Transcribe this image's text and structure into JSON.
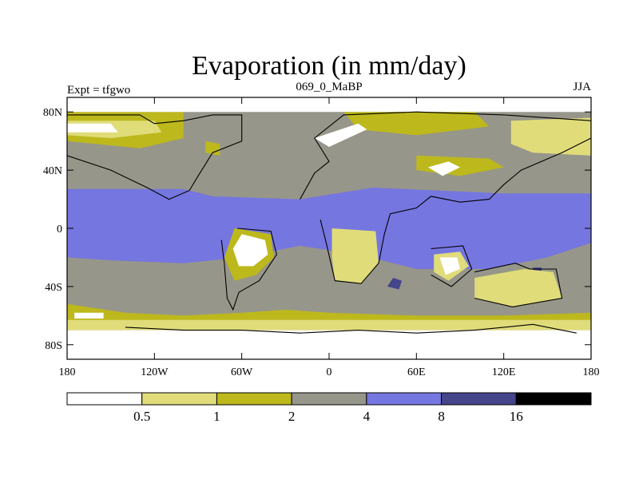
{
  "chart_data": {
    "type": "heatmap",
    "title": "Evaporation (in mm/day)",
    "left_label": "Expt = tfgwo",
    "center_label": "069_0_MaBP",
    "right_label": "JJA",
    "x_range": [
      -180,
      180
    ],
    "y_range": [
      -90,
      90
    ],
    "x_ticks": [
      {
        "value": -180,
        "label": "180"
      },
      {
        "value": -120,
        "label": "120W"
      },
      {
        "value": -60,
        "label": "60W"
      },
      {
        "value": 0,
        "label": "0"
      },
      {
        "value": 60,
        "label": "60E"
      },
      {
        "value": 120,
        "label": "120E"
      },
      {
        "value": 180,
        "label": "180"
      }
    ],
    "y_ticks": [
      {
        "value": 80,
        "label": "80N"
      },
      {
        "value": 40,
        "label": "40N"
      },
      {
        "value": 0,
        "label": "0"
      },
      {
        "value": -40,
        "label": "40S"
      },
      {
        "value": -80,
        "label": "80S"
      }
    ],
    "colorbar": {
      "levels": [
        "0.5",
        "1",
        "2",
        "4",
        "8",
        "16"
      ],
      "colors": [
        "#ffffff",
        "#e0dc7a",
        "#bdb81c",
        "#97968a",
        "#7676e0",
        "#45458c",
        "#000000"
      ]
    },
    "regions": [
      {
        "name": "ocean-southern-band",
        "level": 3,
        "points": [
          [
            -180,
            -28
          ],
          [
            180,
            -28
          ],
          [
            180,
            -62
          ],
          [
            -180,
            -62
          ]
        ]
      },
      {
        "name": "ocean-tropical-band",
        "level": 4,
        "points": [
          [
            -180,
            27
          ],
          [
            -100,
            27
          ],
          [
            -80,
            22
          ],
          [
            -20,
            20
          ],
          [
            30,
            28
          ],
          [
            120,
            24
          ],
          [
            180,
            24
          ],
          [
            180,
            -10
          ],
          [
            150,
            -20
          ],
          [
            110,
            -28
          ],
          [
            60,
            -28
          ],
          [
            20,
            -18
          ],
          [
            -20,
            -12
          ],
          [
            -60,
            -20
          ],
          [
            -100,
            -24
          ],
          [
            -150,
            -22
          ],
          [
            -180,
            -20
          ]
        ]
      },
      {
        "name": "ocean-south-dark-patch",
        "level": 5,
        "points": [
          [
            44,
            -34
          ],
          [
            50,
            -36
          ],
          [
            48,
            -42
          ],
          [
            40,
            -40
          ]
        ]
      },
      {
        "name": "ocean-east-dark-patch",
        "level": 5,
        "points": [
          [
            140,
            -27
          ],
          [
            146,
            -27
          ],
          [
            146,
            -33
          ],
          [
            140,
            -33
          ]
        ]
      },
      {
        "name": "south-ocean-yellow",
        "level": 2,
        "points": [
          [
            -180,
            -52
          ],
          [
            -140,
            -58
          ],
          [
            -100,
            -60
          ],
          [
            -60,
            -58
          ],
          [
            -30,
            -56
          ],
          [
            0,
            -58
          ],
          [
            60,
            -60
          ],
          [
            120,
            -60
          ],
          [
            180,
            -58
          ],
          [
            180,
            -68
          ],
          [
            -180,
            -68
          ]
        ]
      },
      {
        "name": "southern-pale-band",
        "level": 1,
        "points": [
          [
            -180,
            -63
          ],
          [
            180,
            -63
          ],
          [
            180,
            -70
          ],
          [
            -180,
            -70
          ]
        ]
      },
      {
        "name": "antarctica",
        "level": 0,
        "points": [
          [
            -180,
            -70
          ],
          [
            180,
            -70
          ],
          [
            180,
            -90
          ],
          [
            -180,
            -90
          ]
        ]
      },
      {
        "name": "antarctic-ice-white-left",
        "level": 0,
        "points": [
          [
            -175,
            -58
          ],
          [
            -155,
            -58
          ],
          [
            -155,
            -62
          ],
          [
            -175,
            -62
          ]
        ]
      },
      {
        "name": "north-pacific-yellow",
        "level": 2,
        "points": [
          [
            -180,
            80
          ],
          [
            -100,
            80
          ],
          [
            -100,
            62
          ],
          [
            -130,
            55
          ],
          [
            -180,
            60
          ]
        ]
      },
      {
        "name": "north-pacific-pale",
        "level": 1,
        "points": [
          [
            -180,
            74
          ],
          [
            -120,
            74
          ],
          [
            -115,
            66
          ],
          [
            -150,
            62
          ],
          [
            -180,
            64
          ]
        ]
      },
      {
        "name": "north-pacific-white",
        "level": 0,
        "points": [
          [
            -180,
            72
          ],
          [
            -150,
            72
          ],
          [
            -145,
            66
          ],
          [
            -180,
            66
          ]
        ]
      },
      {
        "name": "arctic-white-strip",
        "level": 0,
        "points": [
          [
            -180,
            90
          ],
          [
            180,
            90
          ],
          [
            180,
            80
          ],
          [
            -180,
            80
          ]
        ]
      },
      {
        "name": "north-america-yellow-patch",
        "level": 2,
        "points": [
          [
            -85,
            60
          ],
          [
            -75,
            58
          ],
          [
            -75,
            50
          ],
          [
            -85,
            52
          ]
        ]
      },
      {
        "name": "eurasia-yellow",
        "level": 2,
        "points": [
          [
            10,
            80
          ],
          [
            100,
            80
          ],
          [
            110,
            70
          ],
          [
            60,
            64
          ],
          [
            20,
            68
          ]
        ]
      },
      {
        "name": "northeast-asia-white",
        "level": 0,
        "points": [
          [
            130,
            70
          ],
          [
            170,
            72
          ],
          [
            180,
            70
          ],
          [
            180,
            54
          ],
          [
            150,
            56
          ],
          [
            130,
            60
          ]
        ]
      },
      {
        "name": "northeast-asia-pale",
        "level": 1,
        "points": [
          [
            125,
            74
          ],
          [
            180,
            76
          ],
          [
            180,
            50
          ],
          [
            140,
            52
          ],
          [
            125,
            58
          ]
        ]
      },
      {
        "name": "europe-white-streak",
        "level": 0,
        "points": [
          [
            -10,
            62
          ],
          [
            20,
            72
          ],
          [
            26,
            68
          ],
          [
            0,
            56
          ]
        ]
      },
      {
        "name": "east-asia-yellow",
        "level": 2,
        "points": [
          [
            60,
            50
          ],
          [
            110,
            48
          ],
          [
            120,
            42
          ],
          [
            90,
            36
          ],
          [
            60,
            40
          ]
        ]
      },
      {
        "name": "central-asia-white",
        "level": 0,
        "points": [
          [
            68,
            42
          ],
          [
            82,
            46
          ],
          [
            90,
            42
          ],
          [
            78,
            36
          ]
        ]
      },
      {
        "name": "south-america-yellow",
        "level": 2,
        "points": [
          [
            -65,
            0
          ],
          [
            -40,
            -4
          ],
          [
            -38,
            -20
          ],
          [
            -50,
            -32
          ],
          [
            -65,
            -36
          ],
          [
            -72,
            -20
          ]
        ]
      },
      {
        "name": "south-america-white",
        "level": 0,
        "points": [
          [
            -60,
            -4
          ],
          [
            -44,
            -8
          ],
          [
            -42,
            -18
          ],
          [
            -52,
            -26
          ],
          [
            -62,
            -26
          ],
          [
            -66,
            -14
          ]
        ]
      },
      {
        "name": "africa-south-white",
        "level": 0,
        "points": [
          [
            4,
            -2
          ],
          [
            28,
            -4
          ],
          [
            30,
            -22
          ],
          [
            20,
            -34
          ],
          [
            6,
            -32
          ],
          [
            4,
            -18
          ]
        ]
      },
      {
        "name": "africa-south-pale",
        "level": 1,
        "points": [
          [
            2,
            0
          ],
          [
            32,
            -2
          ],
          [
            34,
            -24
          ],
          [
            22,
            -38
          ],
          [
            4,
            -36
          ],
          [
            2,
            -20
          ]
        ]
      },
      {
        "name": "australia-white",
        "level": 0,
        "points": [
          [
            102,
            -36
          ],
          [
            132,
            -32
          ],
          [
            150,
            -34
          ],
          [
            156,
            -46
          ],
          [
            128,
            -50
          ],
          [
            104,
            -46
          ]
        ]
      },
      {
        "name": "australia-pale",
        "level": 1,
        "points": [
          [
            100,
            -34
          ],
          [
            134,
            -28
          ],
          [
            154,
            -30
          ],
          [
            160,
            -48
          ],
          [
            126,
            -54
          ],
          [
            100,
            -48
          ]
        ]
      },
      {
        "name": "arabia-pale",
        "level": 1,
        "points": [
          [
            72,
            -18
          ],
          [
            90,
            -16
          ],
          [
            96,
            -26
          ],
          [
            82,
            -36
          ],
          [
            72,
            -30
          ]
        ]
      },
      {
        "name": "arabia-white",
        "level": 0,
        "points": [
          [
            76,
            -20
          ],
          [
            88,
            -20
          ],
          [
            90,
            -28
          ],
          [
            80,
            -32
          ]
        ]
      }
    ],
    "coastlines": [
      {
        "name": "north-america",
        "points": [
          [
            -180,
            78
          ],
          [
            -130,
            78
          ],
          [
            -120,
            72
          ],
          [
            -100,
            74
          ],
          [
            -80,
            78
          ],
          [
            -60,
            78
          ],
          [
            -60,
            60
          ],
          [
            -80,
            52
          ],
          [
            -90,
            36
          ],
          [
            -96,
            26
          ],
          [
            -110,
            20
          ],
          [
            -125,
            28
          ],
          [
            -150,
            40
          ],
          [
            -180,
            50
          ]
        ]
      },
      {
        "name": "south-america",
        "points": [
          [
            -63,
            0
          ],
          [
            -40,
            -2
          ],
          [
            -36,
            -18
          ],
          [
            -48,
            -36
          ],
          [
            -62,
            -44
          ],
          [
            -66,
            -56
          ],
          [
            -70,
            -48
          ],
          [
            -72,
            -24
          ],
          [
            -74,
            -8
          ]
        ]
      },
      {
        "name": "africa-eurasia",
        "points": [
          [
            -20,
            20
          ],
          [
            -10,
            38
          ],
          [
            0,
            46
          ],
          [
            -10,
            62
          ],
          [
            10,
            78
          ],
          [
            60,
            80
          ],
          [
            120,
            78
          ],
          [
            180,
            74
          ],
          [
            180,
            62
          ],
          [
            160,
            52
          ],
          [
            132,
            40
          ],
          [
            120,
            30
          ],
          [
            110,
            20
          ],
          [
            90,
            18
          ],
          [
            70,
            22
          ],
          [
            60,
            14
          ],
          [
            42,
            10
          ],
          [
            38,
            -4
          ],
          [
            34,
            -24
          ],
          [
            22,
            -38
          ],
          [
            4,
            -36
          ],
          [
            -2,
            -10
          ],
          [
            -6,
            6
          ]
        ]
      },
      {
        "name": "arabian-block",
        "points": [
          [
            70,
            -14
          ],
          [
            92,
            -12
          ],
          [
            98,
            -28
          ],
          [
            84,
            -40
          ],
          [
            70,
            -32
          ]
        ]
      },
      {
        "name": "australia",
        "points": [
          [
            100,
            -30
          ],
          [
            128,
            -24
          ],
          [
            138,
            -28
          ],
          [
            156,
            -28
          ],
          [
            160,
            -48
          ],
          [
            126,
            -54
          ],
          [
            100,
            -48
          ]
        ]
      },
      {
        "name": "antarctica-coast",
        "points": [
          [
            -140,
            -68
          ],
          [
            -100,
            -70
          ],
          [
            -60,
            -70
          ],
          [
            -20,
            -72
          ],
          [
            20,
            -70
          ],
          [
            60,
            -72
          ],
          [
            100,
            -70
          ],
          [
            140,
            -66
          ],
          [
            170,
            -72
          ]
        ]
      }
    ]
  }
}
